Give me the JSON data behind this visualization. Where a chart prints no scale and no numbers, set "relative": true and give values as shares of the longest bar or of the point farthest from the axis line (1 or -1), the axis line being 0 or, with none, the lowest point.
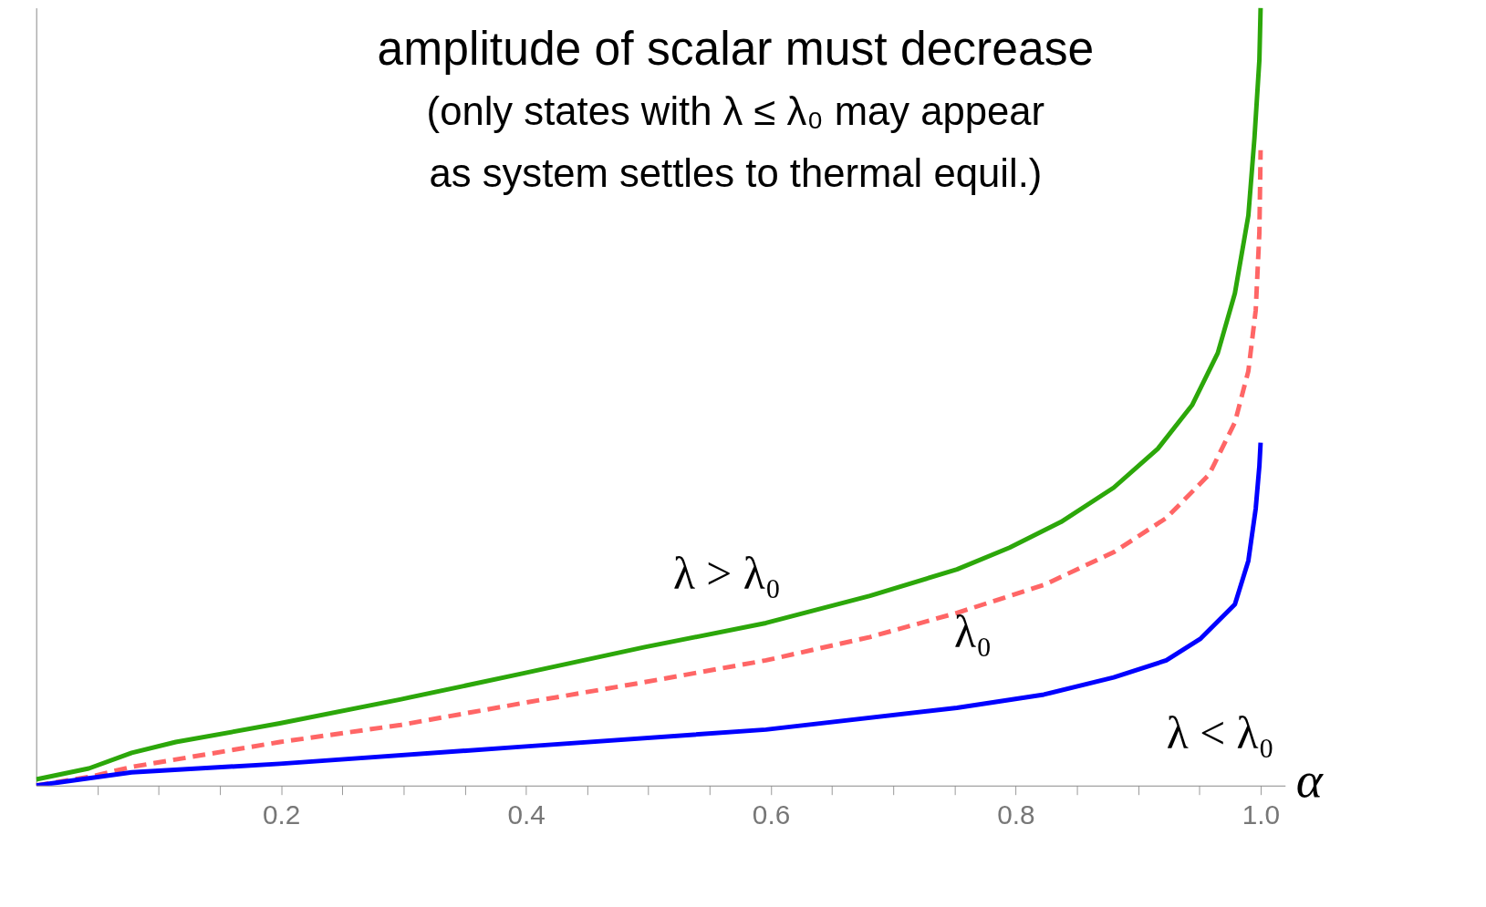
{
  "chart_data": {
    "type": "line",
    "relative": true,
    "xlabel": "α",
    "xlim": [
      0,
      1.02
    ],
    "xticks": [
      {
        "value": 0.05,
        "label": null
      },
      {
        "value": 0.1,
        "label": null
      },
      {
        "value": 0.15,
        "label": null
      },
      0.2,
      {
        "value": 0.25,
        "label": null
      },
      {
        "value": 0.3,
        "label": null
      },
      {
        "value": 0.35,
        "label": null
      },
      0.4,
      {
        "value": 0.45,
        "label": null
      },
      {
        "value": 0.5,
        "label": null
      },
      {
        "value": 0.55,
        "label": null
      },
      0.6,
      {
        "value": 0.65,
        "label": null
      },
      {
        "value": 0.7,
        "label": null
      },
      {
        "value": 0.75,
        "label": null
      },
      0.8,
      {
        "value": 0.85,
        "label": null
      },
      {
        "value": 0.9,
        "label": null
      },
      {
        "value": 0.95,
        "label": null
      },
      {
        "value": 1.0,
        "label": "1.0"
      }
    ],
    "annotations": [
      "amplitude of scalar must decrease",
      "(only states with λ ≤ λ₀ may appear",
      "as system settles to thermal equil.)"
    ],
    "grid": false,
    "series": [
      {
        "name": "λ > λ₀",
        "color": "#2ca70a",
        "line_style": "solid",
        "x": [
          0,
          0.043,
          0.078,
          0.114,
          0.199,
          0.298,
          0.397,
          0.497,
          0.596,
          0.681,
          0.752,
          0.795,
          0.837,
          0.88,
          0.916,
          0.944,
          0.965,
          0.979,
          0.99,
          0.995,
          0.999,
          1.0
        ],
        "values": [
          0.008,
          0.022,
          0.042,
          0.056,
          0.08,
          0.111,
          0.144,
          0.178,
          0.209,
          0.244,
          0.278,
          0.306,
          0.339,
          0.383,
          0.433,
          0.489,
          0.556,
          0.633,
          0.733,
          0.833,
          0.933,
          1
        ]
      },
      {
        "name": "λ₀",
        "color": "#ff6666",
        "line_style": "dashed",
        "x": [
          0,
          0.043,
          0.078,
          0.199,
          0.298,
          0.397,
          0.497,
          0.596,
          0.681,
          0.752,
          0.823,
          0.88,
          0.923,
          0.958,
          0.979,
          0.99,
          0.996,
          0.999,
          1.0
        ],
        "values": [
          0,
          0.011,
          0.024,
          0.056,
          0.078,
          0.106,
          0.133,
          0.161,
          0.191,
          0.222,
          0.258,
          0.3,
          0.344,
          0.4,
          0.467,
          0.533,
          0.611,
          0.711,
          0.817
        ]
      },
      {
        "name": "λ < λ₀",
        "color": "#0000ff",
        "line_style": "solid",
        "x": [
          0,
          0.078,
          0.199,
          0.397,
          0.596,
          0.752,
          0.823,
          0.88,
          0.923,
          0.951,
          0.979,
          0.99,
          0.996,
          0.999,
          1.0
        ],
        "values": [
          0,
          0.017,
          0.028,
          0.05,
          0.072,
          0.1,
          0.117,
          0.139,
          0.161,
          0.189,
          0.233,
          0.289,
          0.356,
          0.411,
          0.441
        ]
      }
    ]
  }
}
